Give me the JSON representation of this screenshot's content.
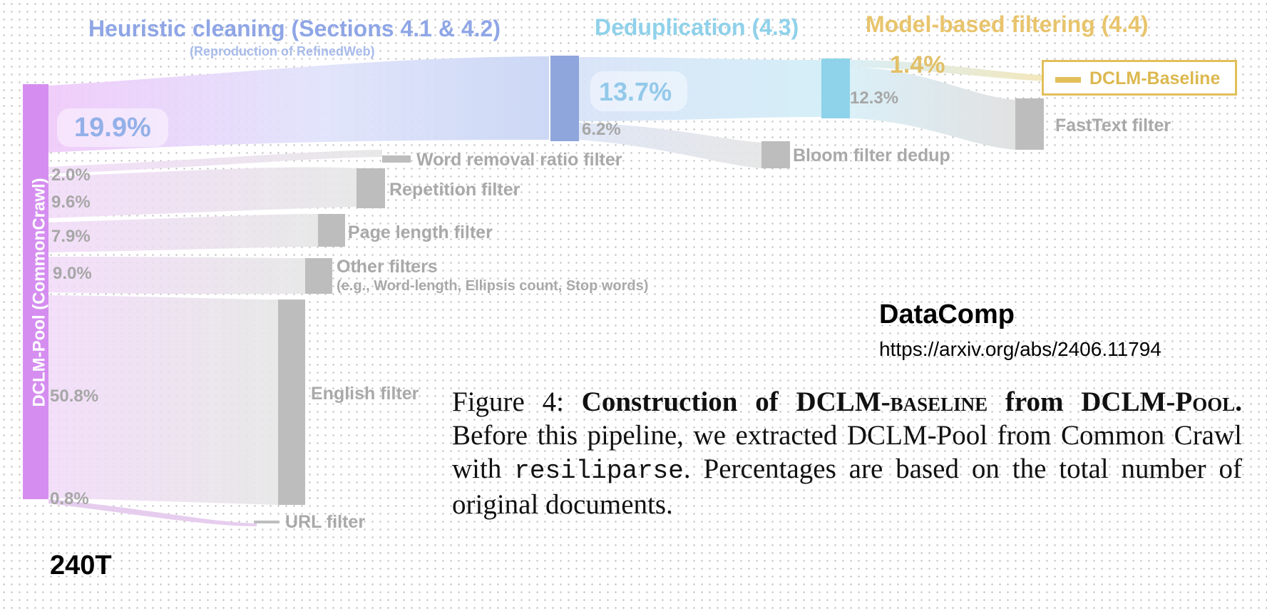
{
  "stages": {
    "heuristic_title": "Heuristic cleaning (Sections 4.1 & 4.2)",
    "heuristic_subtitle": "(Reproduction of RefinedWeb)",
    "dedup_title": "Deduplication (4.3)",
    "model_title": "Model-based filtering (4.4)"
  },
  "pool": {
    "label": "DCLM-Pool (CommonCrawl)",
    "tokens": "240T"
  },
  "heuristic": {
    "remaining_pct": "19.9%",
    "filters": [
      {
        "pct": "2.0%",
        "label": "Word removal ratio filter"
      },
      {
        "pct": "9.6%",
        "label": "Repetition filter"
      },
      {
        "pct": "7.9%",
        "label": "Page length filter"
      },
      {
        "pct": "9.0%",
        "label": "Other filters",
        "sub": "(e.g., Word-length, Ellipsis count, Stop words)"
      },
      {
        "pct": "50.8%",
        "label": "English filter"
      },
      {
        "pct": "0.8%",
        "label": "URL filter"
      }
    ]
  },
  "dedup": {
    "remaining_pct": "13.7%",
    "removed_pct": "6.2%",
    "removed_label": "Bloom filter dedup"
  },
  "model": {
    "remaining_pct": "1.4%",
    "removed_pct": "12.3%",
    "removed_label": "FastText filter",
    "output_label": "DCLM-Baseline"
  },
  "reference": {
    "title": "DataComp",
    "url": "https://arxiv.org/abs/2406.11794"
  },
  "caption": {
    "figure": "Figure 4:",
    "title_a": "Construction of DCLM-",
    "title_b": "baseline",
    "title_c": " from DCLM-",
    "title_d": "Pool.",
    "text_a": " Before this pipeline, we extracted DCLM-Pool from Common Crawl with ",
    "code": "resiliparse",
    "text_b": ". Percentages are based on the total number of original documents."
  },
  "colors": {
    "pool": "#d58ef0",
    "heuristic_node": "#8fa6dc",
    "dedup_node": "#8ed3ea",
    "model_output": "#e2bf5a",
    "removed_node": "#bdbdbd"
  }
}
